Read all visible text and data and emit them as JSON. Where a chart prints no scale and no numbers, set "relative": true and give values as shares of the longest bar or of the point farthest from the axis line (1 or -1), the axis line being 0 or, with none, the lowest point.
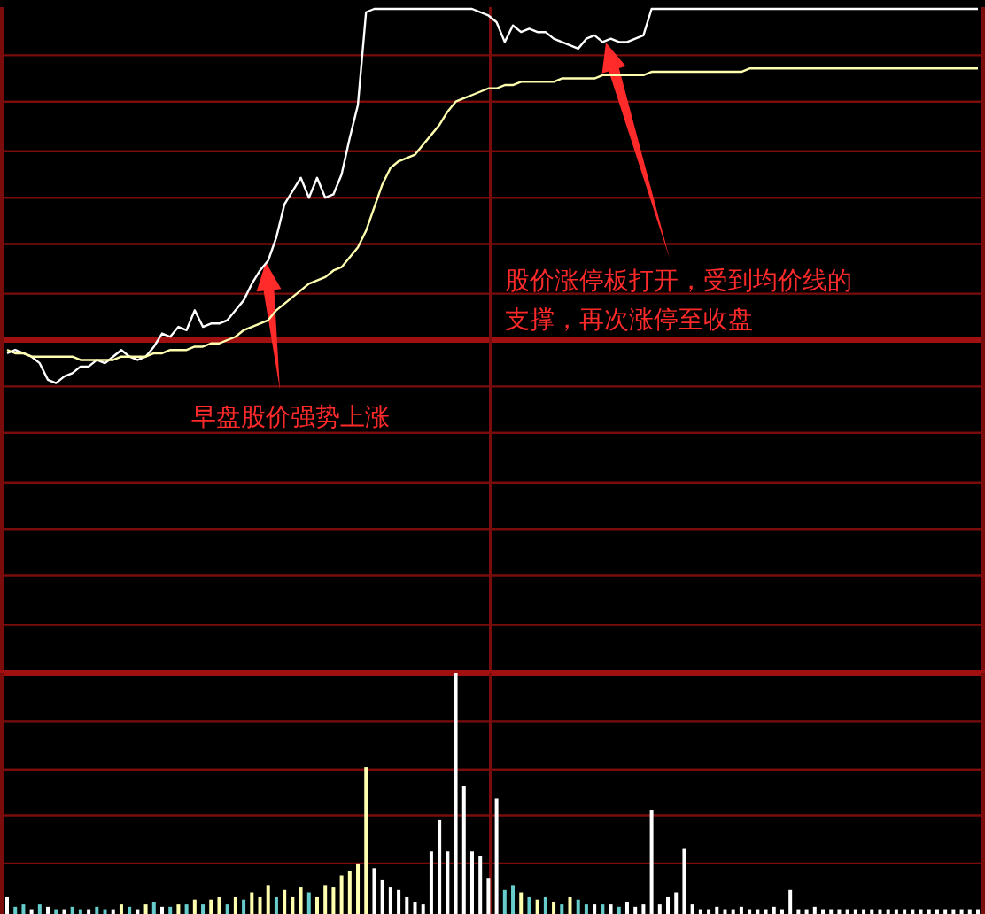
{
  "chart_data": [
    {
      "type": "line",
      "relative": true,
      "ref_lines": [
        {
          "axis": "y",
          "value": 0,
          "color": "#a01010"
        },
        {
          "axis": "y",
          "value": 0.86
        },
        {
          "axis": "y",
          "value": 0.72
        },
        {
          "axis": "y",
          "value": 0.57
        },
        {
          "axis": "y",
          "value": 0.43
        },
        {
          "axis": "y",
          "value": 0.29
        },
        {
          "axis": "y",
          "value": 0.14
        },
        {
          "axis": "y",
          "value": -0.14
        },
        {
          "axis": "y",
          "value": -0.28
        },
        {
          "axis": "y",
          "value": -0.43
        },
        {
          "axis": "y",
          "value": -0.57
        },
        {
          "axis": "y",
          "value": -0.71
        },
        {
          "axis": "y",
          "value": -0.86
        }
      ],
      "categories": [
        null,
        null,
        null,
        null,
        null,
        null,
        null,
        null,
        null,
        null,
        null,
        null,
        null,
        null,
        null,
        null,
        null,
        null,
        null,
        null,
        null,
        null,
        null,
        null,
        null,
        null,
        null,
        null,
        null,
        null,
        null,
        null,
        null,
        null,
        null,
        null,
        null,
        null,
        null,
        null,
        null,
        null,
        null,
        null,
        null,
        null,
        null,
        null,
        null,
        null,
        null,
        null,
        null,
        null,
        null,
        null,
        null,
        null,
        null,
        null,
        null,
        null,
        null,
        null,
        null,
        null,
        null,
        null,
        null,
        null,
        null,
        null,
        null,
        null,
        null,
        null,
        null,
        null,
        null,
        null,
        null,
        null,
        null,
        null,
        null,
        null,
        null,
        null,
        null,
        null,
        null,
        null,
        null,
        null,
        null,
        null,
        null,
        null,
        null,
        null,
        null,
        null,
        null,
        null,
        null,
        null,
        null,
        null,
        null,
        null,
        null,
        null,
        null,
        null,
        null,
        null,
        null,
        null,
        null,
        null
      ],
      "series": [
        {
          "color": "#ffffff",
          "values": [
            -0.04,
            -0.03,
            -0.04,
            -0.05,
            -0.07,
            -0.12,
            -0.13,
            -0.11,
            -0.1,
            -0.08,
            -0.08,
            -0.06,
            -0.07,
            -0.05,
            -0.03,
            -0.05,
            -0.06,
            -0.05,
            -0.02,
            0.02,
            0.01,
            0.04,
            0.03,
            0.09,
            0.04,
            0.05,
            0.05,
            0.06,
            0.09,
            0.12,
            0.17,
            0.21,
            0.24,
            0.31,
            0.41,
            0.45,
            0.49,
            0.43,
            0.49,
            0.43,
            0.44,
            0.5,
            0.61,
            0.71,
            0.99,
            1,
            1,
            1,
            1,
            1,
            1,
            1,
            1,
            1,
            1,
            1,
            1,
            1,
            0.99,
            0.98,
            0.96,
            0.9,
            0.95,
            0.93,
            0.94,
            0.93,
            0.93,
            0.91,
            0.9,
            0.89,
            0.88,
            0.91,
            0.92,
            0.9,
            0.91,
            0.9,
            0.9,
            0.91,
            0.92,
            1,
            1,
            1,
            1,
            1,
            1,
            1,
            1,
            1,
            1,
            1,
            1,
            1,
            1,
            1,
            1,
            1,
            1,
            1,
            1,
            1,
            1,
            1,
            1,
            1,
            1,
            1,
            1,
            1,
            1,
            1,
            1,
            1,
            1,
            1,
            1,
            1,
            1,
            1,
            1,
            1
          ]
        },
        {
          "color": "#ffffb0",
          "values": [
            -0.03,
            -0.04,
            -0.04,
            -0.05,
            -0.05,
            -0.05,
            -0.05,
            -0.05,
            -0.05,
            -0.06,
            -0.06,
            -0.06,
            -0.06,
            -0.06,
            -0.05,
            -0.05,
            -0.05,
            -0.05,
            -0.04,
            -0.04,
            -0.03,
            -0.03,
            -0.03,
            -0.02,
            -0.02,
            -0.01,
            -0.01,
            0,
            0.01,
            0.03,
            0.04,
            0.05,
            0.06,
            0.09,
            0.11,
            0.13,
            0.15,
            0.17,
            0.18,
            0.19,
            0.21,
            0.22,
            0.25,
            0.28,
            0.33,
            0.4,
            0.47,
            0.52,
            0.54,
            0.55,
            0.56,
            0.59,
            0.62,
            0.65,
            0.69,
            0.72,
            0.73,
            0.74,
            0.75,
            0.76,
            0.76,
            0.77,
            0.77,
            0.78,
            0.78,
            0.78,
            0.78,
            0.78,
            0.79,
            0.79,
            0.79,
            0.79,
            0.79,
            0.8,
            0.8,
            0.8,
            0.8,
            0.8,
            0.8,
            0.81,
            0.81,
            0.81,
            0.81,
            0.81,
            0.81,
            0.81,
            0.81,
            0.81,
            0.81,
            0.81,
            0.81,
            0.82,
            0.82,
            0.82,
            0.82,
            0.82,
            0.82,
            0.82,
            0.82,
            0.82,
            0.82,
            0.82,
            0.82,
            0.82,
            0.82,
            0.82,
            0.82,
            0.82,
            0.82,
            0.82,
            0.82,
            0.82,
            0.82,
            0.82,
            0.82,
            0.82,
            0.82,
            0.82,
            0.82,
            0.82
          ]
        }
      ],
      "annotations": [
        "早盘股价强势上涨",
        "股价涨停板打开，受到均价线的支撑，再次涨停至收盘"
      ]
    },
    {
      "type": "bar",
      "relative": true,
      "ref_lines": [
        {
          "axis": "y",
          "value": 1,
          "color": "#a01010"
        },
        {
          "axis": "y",
          "value": 0.8
        },
        {
          "axis": "y",
          "value": 0.6
        },
        {
          "axis": "y",
          "value": 0.41
        },
        {
          "axis": "y",
          "value": 0.21
        }
      ],
      "categories": [
        null,
        null,
        null,
        null,
        null,
        null,
        null,
        null,
        null,
        null,
        null,
        null,
        null,
        null,
        null,
        null,
        null,
        null,
        null,
        null,
        null,
        null,
        null,
        null,
        null,
        null,
        null,
        null,
        null,
        null,
        null,
        null,
        null,
        null,
        null,
        null,
        null,
        null,
        null,
        null,
        null,
        null,
        null,
        null,
        null,
        null,
        null,
        null,
        null,
        null,
        null,
        null,
        null,
        null,
        null,
        null,
        null,
        null,
        null,
        null,
        null,
        null,
        null,
        null,
        null,
        null,
        null,
        null,
        null,
        null,
        null,
        null,
        null,
        null,
        null,
        null,
        null,
        null,
        null,
        null,
        null,
        null,
        null,
        null,
        null,
        null,
        null,
        null,
        null,
        null,
        null,
        null,
        null,
        null,
        null,
        null,
        null,
        null,
        null,
        null,
        null,
        null,
        null,
        null,
        null,
        null,
        null,
        null,
        null,
        null,
        null,
        null,
        null,
        null,
        null,
        null,
        null,
        null,
        null,
        null
      ],
      "values": [
        0.07,
        0.03,
        0.04,
        0.02,
        0.04,
        0.03,
        0.02,
        0.02,
        0.03,
        0.02,
        0.02,
        0.03,
        0.02,
        0.02,
        0.04,
        0.03,
        0.02,
        0.04,
        0.05,
        0.03,
        0.03,
        0.04,
        0.04,
        0.06,
        0.04,
        0.06,
        0.07,
        0.04,
        0.07,
        0.06,
        0.09,
        0.07,
        0.12,
        0.07,
        0.1,
        0.07,
        0.11,
        0.09,
        0.07,
        0.12,
        0.11,
        0.16,
        0.18,
        0.21,
        0.61,
        0.19,
        0.14,
        0.11,
        0.1,
        0.07,
        0.05,
        0.04,
        0.26,
        0.39,
        0.26,
        1,
        0.53,
        0.26,
        0.24,
        0.15,
        0.48,
        0.1,
        0.12,
        0.09,
        0.07,
        0.06,
        0.07,
        0.05,
        0.04,
        0.07,
        0.06,
        0.04,
        0.04,
        0.04,
        0.04,
        0.03,
        0.05,
        0.03,
        0.04,
        0.43,
        0.04,
        0.07,
        0.09,
        0.27,
        0.04,
        0.02,
        0.02,
        0.03,
        0.02,
        0.02,
        0.03,
        0.02,
        0.02,
        0.02,
        0.03,
        0.02,
        0.1,
        0.02,
        0.02,
        0.03,
        0.02,
        0.02,
        0.02,
        0.02,
        0.02,
        0.02,
        0.02,
        0.02,
        0.02,
        0.02,
        0.02,
        0.02,
        0.02,
        0.02,
        0.02,
        0.02,
        0.02,
        0.02,
        0.02,
        0.02
      ],
      "colors": [
        "#ffffff",
        "#66cccc",
        "#66cccc",
        "#ffffff",
        "#66cccc",
        "#ffffff",
        "#66cccc",
        "#ffffff",
        "#66cccc",
        "#66cccc",
        "#ffffff",
        "#66cccc",
        "#66cccc",
        "#ffffff",
        "#ffffb0",
        "#66cccc",
        "#ffffff",
        "#ffffb0",
        "#66cccc",
        "#ffffff",
        "#66cccc",
        "#ffffb0",
        "#66cccc",
        "#ffffb0",
        "#66cccc",
        "#ffffb0",
        "#ffffb0",
        "#66cccc",
        "#ffffb0",
        "#66cccc",
        "#ffffb0",
        "#ffffb0",
        "#ffffb0",
        "#66cccc",
        "#ffffb0",
        "#ffffb0",
        "#ffffb0",
        "#66cccc",
        "#ffffb0",
        "#ffffb0",
        "#ffffb0",
        "#ffffb0",
        "#ffffb0",
        "#ffffb0",
        "#ffffb0",
        "#ffffff",
        "#ffffff",
        "#ffffff",
        "#ffffff",
        "#ffffff",
        "#ffffff",
        "#ffffff",
        "#ffffff",
        "#ffffff",
        "#ffffff",
        "#ffffff",
        "#ffffff",
        "#ffffff",
        "#ffffff",
        "#ffffff",
        "#ffffff",
        "#66cccc",
        "#66cccc",
        "#ffffb0",
        "#66cccc",
        "#ffffb0",
        "#66cccc",
        "#ffffb0",
        "#66cccc",
        "#ffffb0",
        "#66cccc",
        "#66cccc",
        "#ffffff",
        "#66cccc",
        "#ffffff",
        "#66cccc",
        "#ffffff",
        "#ffffff",
        "#ffffff",
        "#ffffff",
        "#ffffff",
        "#ffffff",
        "#ffffff",
        "#ffffff",
        "#ffffff",
        "#ffffff",
        "#ffffff",
        "#ffffff",
        "#ffffff",
        "#ffffff",
        "#ffffff",
        "#ffffff",
        "#ffffff",
        "#ffffff",
        "#ffffff",
        "#ffffff",
        "#ffffff",
        "#ffffff",
        "#ffffff",
        "#ffffff",
        "#ffffff",
        "#ffffff",
        "#ffffff",
        "#ffffff",
        "#ffffff",
        "#ffffff",
        "#ffffff",
        "#ffffff",
        "#ffffff",
        "#ffffff",
        "#ffffff",
        "#ffffff",
        "#ffffff",
        "#ffffff",
        "#ffffff",
        "#ffffff",
        "#ffffff",
        "#ffffff",
        "#ffffff",
        "#ffffff"
      ]
    }
  ]
}
